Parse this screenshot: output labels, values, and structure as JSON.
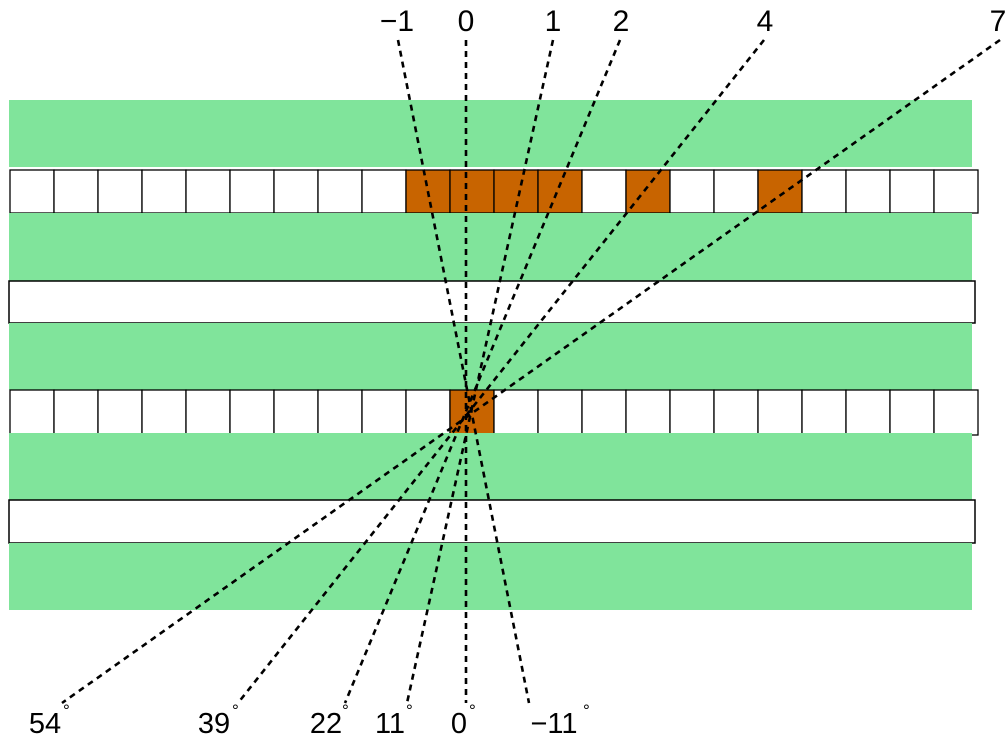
{
  "colors": {
    "band": "#80e49b",
    "cell_fill": "#ffffff",
    "cell_highlight": "#c86400",
    "stroke": "#000000",
    "ray": "#000000"
  },
  "strip_pattern": [
    "band",
    "cells",
    "band",
    "plain",
    "band",
    "cells",
    "band",
    "plain",
    "band"
  ],
  "cell_count": 22,
  "upper_cell_row": {
    "highlighted_cells": [
      9,
      10,
      11,
      12,
      14,
      17
    ]
  },
  "lower_cell_row": {
    "highlighted_cells": [
      10
    ]
  },
  "rays": [
    {
      "top_label": "−1",
      "bottom_label": "−11",
      "degree_mark": "°"
    },
    {
      "top_label": "0",
      "bottom_label": "0",
      "degree_mark": "°"
    },
    {
      "top_label": "1",
      "bottom_label": "11",
      "degree_mark": "°"
    },
    {
      "top_label": "2",
      "bottom_label": "22",
      "degree_mark": "°"
    },
    {
      "top_label": "4",
      "bottom_label": "39",
      "degree_mark": "°"
    },
    {
      "top_label": "7",
      "bottom_label": "54",
      "degree_mark": "°"
    }
  ]
}
